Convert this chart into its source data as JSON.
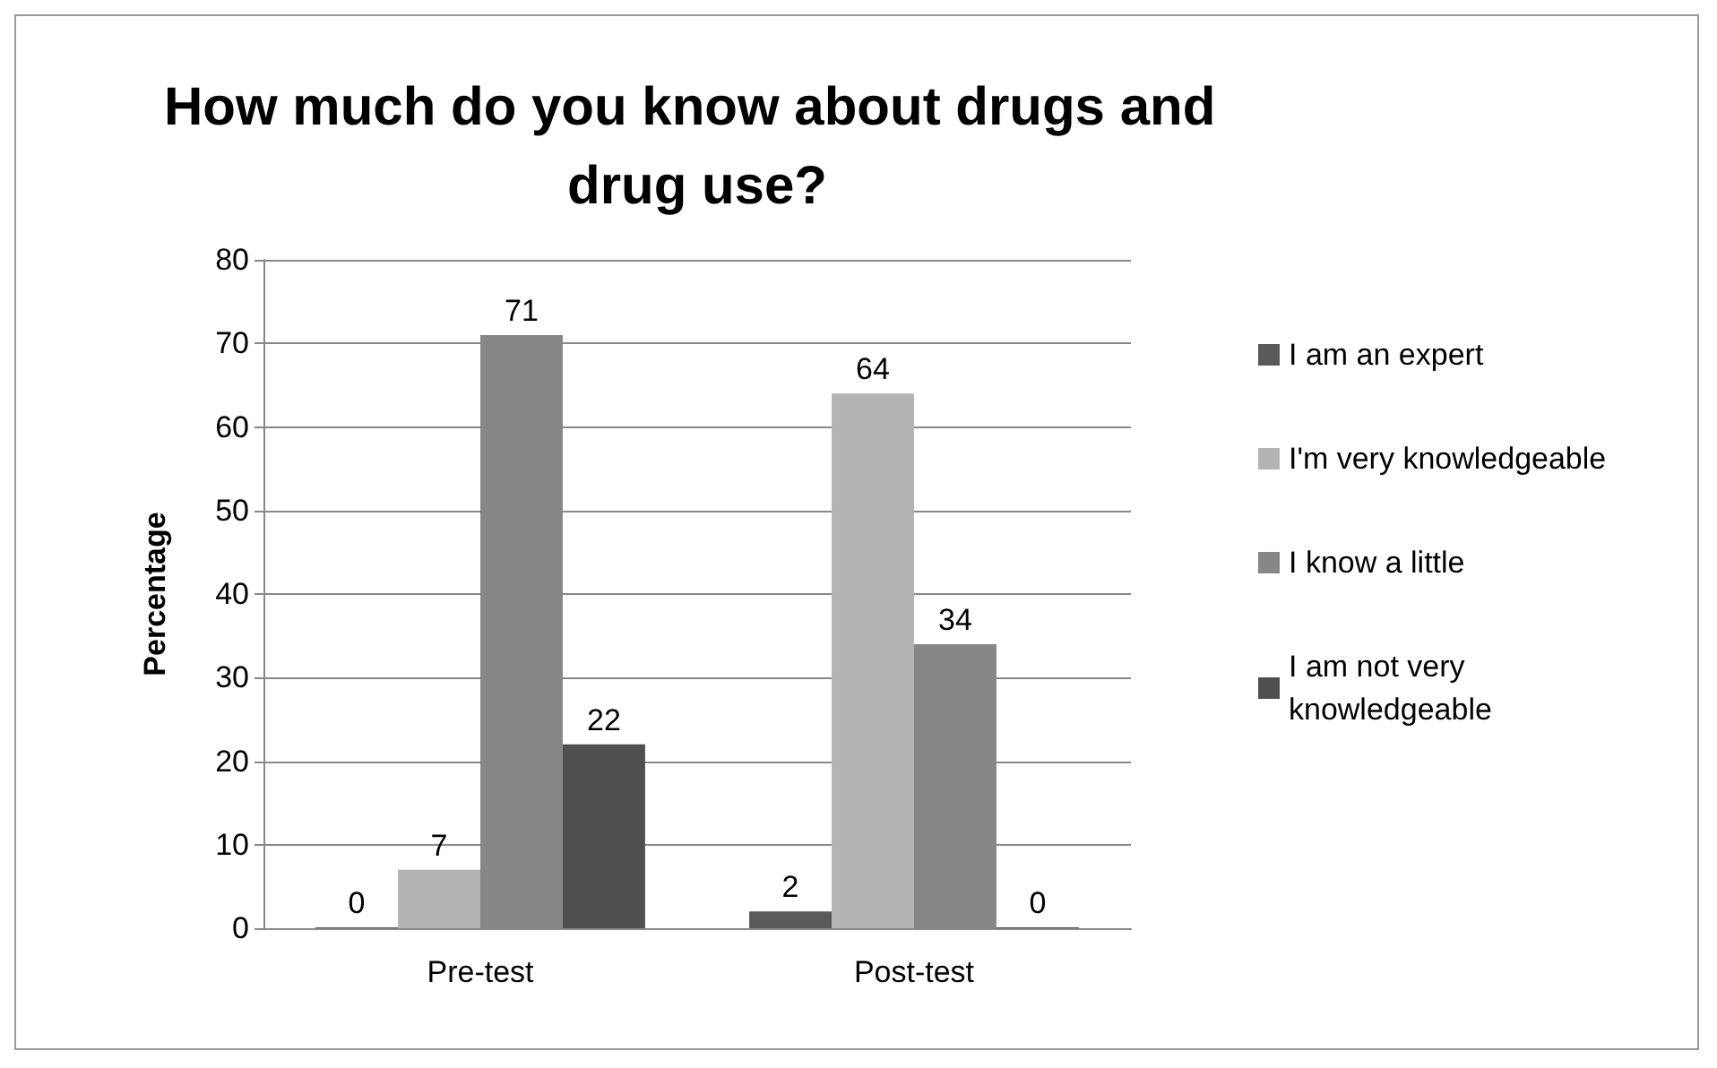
{
  "chart_data": {
    "type": "bar",
    "title": "How much do you know about drugs and drug use?",
    "ylabel": "Percentage",
    "categories": [
      "Pre-test",
      "Post-test"
    ],
    "series": [
      {
        "name": "I am an expert",
        "color": "#5a5a5a",
        "values": [
          0,
          2
        ]
      },
      {
        "name": "I'm very knowledgeable",
        "color": "#b4b4b4",
        "values": [
          7,
          64
        ]
      },
      {
        "name": "I know a little",
        "color": "#878787",
        "values": [
          71,
          34
        ]
      },
      {
        "name": "I am not very knowledgeable",
        "color": "#4f4f4f",
        "values": [
          22,
          0
        ]
      }
    ],
    "ylim": [
      0,
      80
    ],
    "yticks": [
      0,
      10,
      20,
      30,
      40,
      50,
      60,
      70,
      80
    ],
    "grid": "y",
    "legend": "right",
    "data_labels": true
  }
}
